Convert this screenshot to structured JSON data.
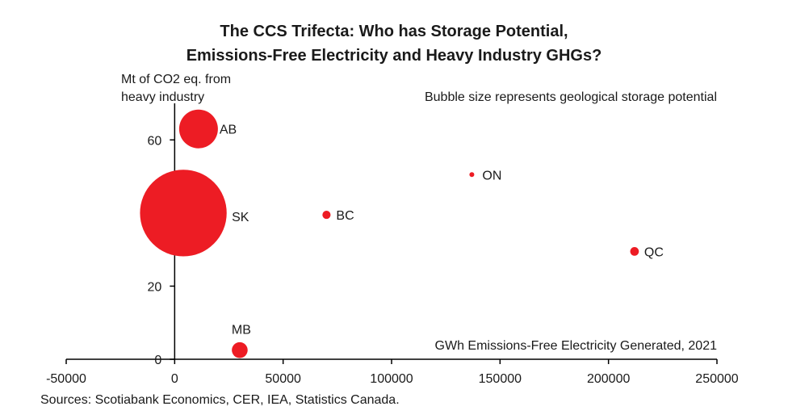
{
  "chart_data": {
    "type": "scatter",
    "title_line1": "The CCS Trifecta: Who has Storage Potential,",
    "title_line2": "Emissions-Free Electricity and Heavy Industry GHGs?",
    "ylabel_line1": "Mt of CO2 eq. from",
    "ylabel_line2": "heavy industry",
    "xlabel": "GWh Emissions-Free Electricity Generated, 2021",
    "annotation": "Bubble size represents geological storage potential",
    "source": "Sources: Scotiabank Economics, CER, IEA, Statistics Canada.",
    "xlim": [
      -50000,
      250000
    ],
    "ylim": [
      0,
      70
    ],
    "x_ticks": [
      -50000,
      0,
      50000,
      100000,
      150000,
      200000,
      250000
    ],
    "x_tick_labels": [
      "-50000",
      "0",
      "50000",
      "100000",
      "150000",
      "200000",
      "250000"
    ],
    "y_ticks": [
      0,
      20,
      40,
      60
    ],
    "y_tick_labels": [
      "0",
      "20",
      "40",
      "60"
    ],
    "bubble_color": "#ed1c24",
    "points": [
      {
        "label": "AB",
        "x": 11000,
        "y": 63,
        "size": 9,
        "label_dx": 26,
        "label_dy": 6
      },
      {
        "label": "SK",
        "x": 4000,
        "y": 40,
        "size": 45,
        "label_dx": 60,
        "label_dy": 10
      },
      {
        "label": "ON",
        "x": 137000,
        "y": 50.5,
        "size": 0.1,
        "label_dx": 13,
        "label_dy": 6
      },
      {
        "label": "BC",
        "x": 70000,
        "y": 39.5,
        "size": 0.4,
        "label_dx": 12,
        "label_dy": 6
      },
      {
        "label": "QC",
        "x": 212000,
        "y": 29.5,
        "size": 0.45,
        "label_dx": 12,
        "label_dy": 6
      },
      {
        "label": "MB",
        "x": 30000,
        "y": 2.5,
        "size": 1.5,
        "label_dx": -10,
        "label_dy": -20
      }
    ]
  }
}
